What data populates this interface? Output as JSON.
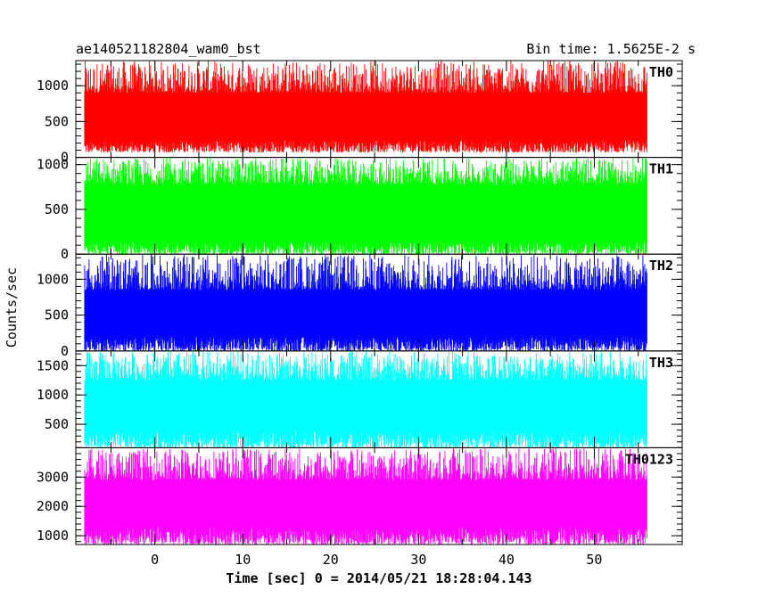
{
  "chart_data": {
    "type": "line",
    "title_left": "ae140521182804_wam0_bst",
    "title_right": "Bin time: 1.5625E-2 s",
    "xlabel": "Time [sec] 0 = 2014/05/21 18:28:04.143",
    "ylabel": "Counts/sec",
    "xlim": [
      -9,
      60
    ],
    "x_ticks": [
      0,
      10,
      20,
      30,
      40,
      50
    ],
    "x_tick_labels": [
      "0",
      "10",
      "20",
      "30",
      "40",
      "50"
    ],
    "data_x_range": [
      -8,
      56
    ],
    "grid": false,
    "panels": [
      {
        "name": "TH0",
        "color": "#ff0000",
        "ylim": [
          0,
          1350
        ],
        "y_ticks": [
          0,
          500,
          1000
        ],
        "y_tick_labels": [
          "0",
          "500",
          "1000"
        ],
        "mean": 620,
        "low_range": [
          70,
          240
        ],
        "high_range": [
          900,
          1350
        ]
      },
      {
        "name": "TH1",
        "color": "#00ff00",
        "ylim": [
          0,
          1080
        ],
        "y_ticks": [
          0,
          500,
          1000
        ],
        "y_tick_labels": [
          "0",
          "500",
          "1000"
        ],
        "mean": 520,
        "low_range": [
          0,
          140
        ],
        "high_range": [
          780,
          1080
        ]
      },
      {
        "name": "TH2",
        "color": "#0000ff",
        "ylim": [
          0,
          1350
        ],
        "y_ticks": [
          0,
          500,
          1000
        ],
        "y_tick_labels": [
          "0",
          "500",
          "1000"
        ],
        "mean": 580,
        "low_range": [
          0,
          200
        ],
        "high_range": [
          850,
          1350
        ]
      },
      {
        "name": "TH3",
        "color": "#00ffff",
        "ylim": [
          100,
          1750
        ],
        "y_ticks": [
          500,
          1000,
          1500
        ],
        "y_tick_labels": [
          "500",
          "1000",
          "1500"
        ],
        "mean": 900,
        "low_range": [
          100,
          380
        ],
        "high_range": [
          1250,
          1750
        ]
      },
      {
        "name": "TH0123",
        "color": "#ff00ff",
        "ylim": [
          700,
          4000
        ],
        "y_ticks": [
          1000,
          2000,
          3000
        ],
        "y_tick_labels": [
          "1000",
          "2000",
          "3000"
        ],
        "mean": 2200,
        "low_range": [
          700,
          1300
        ],
        "high_range": [
          2900,
          4000
        ]
      }
    ]
  }
}
